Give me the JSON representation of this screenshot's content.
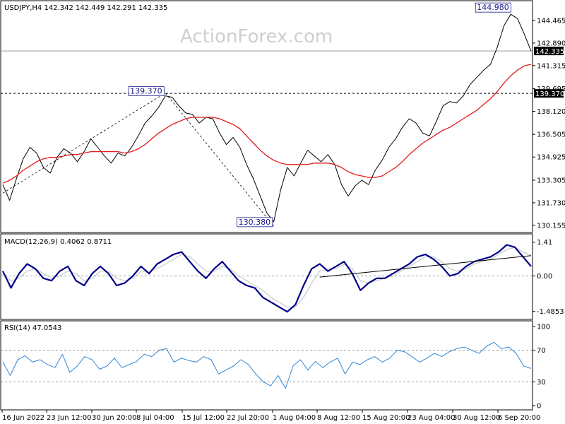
{
  "watermark": "ActionForex.com",
  "chart_data": {
    "type": "line",
    "price_panel": {
      "title": "USDJPY,H4  142.342 142.449 142.291 142.335",
      "series": [
        {
          "values": [
            133.0,
            131.9,
            133.4,
            134.8,
            135.6,
            135.2,
            134.2,
            133.8,
            134.9,
            135.5,
            135.2,
            134.6,
            135.3,
            136.2,
            135.6,
            135.0,
            134.5,
            135.2,
            135.0,
            135.6,
            136.4,
            137.3,
            137.8,
            138.4,
            139.2,
            139.1,
            138.5,
            138.0,
            137.9,
            137.3,
            137.7,
            137.6,
            136.6,
            135.8,
            136.3,
            135.6,
            134.4,
            133.4,
            132.2,
            131.0,
            130.4,
            132.6,
            134.2,
            133.6,
            134.5,
            135.4,
            135.0,
            134.6,
            135.1,
            134.4,
            133.0,
            132.2,
            132.9,
            133.3,
            133.0,
            134.0,
            134.7,
            135.6,
            136.2,
            137.0,
            137.6,
            137.3,
            136.6,
            136.4,
            137.4,
            138.5,
            138.8,
            138.7,
            139.2,
            140.0,
            140.5,
            141.0,
            141.4,
            142.6,
            144.1,
            144.9,
            144.6,
            143.5,
            142.33
          ]
        },
        {
          "values": [
            133.1,
            133.3,
            133.6,
            134.0,
            134.3,
            134.6,
            134.8,
            134.9,
            134.9,
            135.0,
            135.1,
            135.1,
            135.2,
            135.3,
            135.3,
            135.3,
            135.3,
            135.3,
            135.2,
            135.3,
            135.5,
            135.8,
            136.2,
            136.6,
            136.9,
            137.2,
            137.4,
            137.6,
            137.7,
            137.7,
            137.7,
            137.7,
            137.6,
            137.4,
            137.2,
            136.9,
            136.4,
            135.9,
            135.4,
            135.0,
            134.7,
            134.5,
            134.4,
            134.4,
            134.4,
            134.4,
            134.5,
            134.5,
            134.5,
            134.4,
            134.2,
            133.9,
            133.7,
            133.6,
            133.5,
            133.5,
            133.6,
            133.9,
            134.2,
            134.6,
            135.1,
            135.5,
            135.9,
            136.2,
            136.5,
            136.8,
            137.0,
            137.3,
            137.6,
            137.9,
            138.2,
            138.6,
            139.0,
            139.5,
            140.1,
            140.6,
            141.0,
            141.3,
            141.4
          ]
        }
      ],
      "y_ticks": [
        "144.465",
        "142.890",
        "141.315",
        "139.695",
        "138.120",
        "136.505",
        "134.925",
        "133.305",
        "131.730",
        "130.155"
      ],
      "ylim": [
        129.8,
        145.6
      ],
      "hline_value": 139.37,
      "current_price": 142.335,
      "current_price_label": "142.335",
      "hline_label": "139.370",
      "callouts": [
        "139.370",
        "130.380",
        "144.980"
      ]
    },
    "macd_panel": {
      "title": "MACD(12,26,9) 0.4062 0.8711",
      "series": [
        {
          "values": [
            0.2,
            -0.5,
            0.1,
            0.5,
            0.3,
            -0.1,
            -0.2,
            0.2,
            0.4,
            -0.2,
            -0.4,
            0.1,
            0.4,
            0.1,
            -0.4,
            -0.3,
            0.0,
            0.4,
            0.1,
            0.5,
            0.7,
            0.9,
            1.0,
            0.6,
            0.2,
            -0.1,
            0.3,
            0.6,
            0.2,
            -0.2,
            -0.4,
            -0.5,
            -0.9,
            -1.1,
            -1.3,
            -1.5,
            -1.2,
            -0.4,
            0.3,
            0.5,
            0.2,
            0.4,
            0.6,
            0.1,
            -0.6,
            -0.3,
            -0.1,
            -0.1,
            0.1,
            0.3,
            0.5,
            0.8,
            0.9,
            0.7,
            0.4,
            0.0,
            0.1,
            0.4,
            0.6,
            0.7,
            0.8,
            1.0,
            1.3,
            1.2,
            0.8,
            0.4
          ]
        },
        {
          "values": [
            0.1,
            -0.2,
            -0.1,
            0.2,
            0.3,
            0.1,
            -0.1,
            0.0,
            0.2,
            0.1,
            -0.2,
            -0.1,
            0.2,
            0.2,
            -0.1,
            -0.2,
            -0.1,
            0.2,
            0.2,
            0.3,
            0.5,
            0.7,
            0.9,
            0.8,
            0.5,
            0.2,
            0.2,
            0.4,
            0.3,
            0.0,
            -0.2,
            -0.4,
            -0.6,
            -0.9,
            -1.1,
            -1.3,
            -1.3,
            -0.9,
            -0.3,
            0.2,
            0.3,
            0.3,
            0.5,
            0.3,
            -0.2,
            -0.3,
            -0.2,
            -0.1,
            0.0,
            0.2,
            0.4,
            0.6,
            0.8,
            0.8,
            0.6,
            0.3,
            0.2,
            0.3,
            0.5,
            0.6,
            0.7,
            0.9,
            1.1,
            1.2,
            1.0,
            0.87
          ]
        }
      ],
      "y_ticks": [
        "1.41",
        "0.00",
        "-1.4853"
      ],
      "ylim": [
        -1.7,
        1.55
      ],
      "trendline": [
        [
          0.6,
          -0.05
        ],
        [
          1.0,
          0.85
        ]
      ]
    },
    "rsi_panel": {
      "title": "RSI(14) 47.0543",
      "series": [
        {
          "values": [
            55,
            38,
            58,
            63,
            55,
            58,
            52,
            48,
            65,
            42,
            50,
            62,
            58,
            46,
            50,
            60,
            48,
            52,
            56,
            65,
            62,
            70,
            72,
            55,
            60,
            57,
            55,
            62,
            58,
            40,
            45,
            50,
            58,
            52,
            40,
            30,
            25,
            38,
            22,
            50,
            58,
            45,
            56,
            48,
            55,
            60,
            40,
            55,
            52,
            58,
            62,
            55,
            60,
            70,
            68,
            62,
            55,
            60,
            66,
            62,
            68,
            72,
            74,
            70,
            66,
            75,
            80,
            72,
            74,
            66,
            50,
            47
          ]
        }
      ],
      "y_ticks": [
        "100",
        "70",
        "30",
        "0"
      ],
      "ylim": [
        0,
        100
      ],
      "levels": [
        70,
        30
      ]
    },
    "x_tick_labels": [
      "16 Jun 2022",
      "23 Jun 12:00",
      "30 Jun 20:00",
      "8 Jul 04:00",
      "15 Jul 12:00",
      "22 Jul 20:00",
      "1 Aug 04:00",
      "8 Aug 12:00",
      "15 Aug 20:00",
      "23 Aug 04:00",
      "30 Aug 12:00",
      "6 Sep 20:00"
    ],
    "colors": {
      "price_line": "#000000",
      "moving_average": "#e41a1c",
      "macd_line": "#00008b",
      "signal_line": "#bfbfbf",
      "rsi_line": "#2f86d6",
      "callout_text": "#1a1a8c",
      "dashed_level": "#000000",
      "axis_label_bg": "#000000",
      "axis_label_text": "#ffffff"
    },
    "grid": false
  }
}
